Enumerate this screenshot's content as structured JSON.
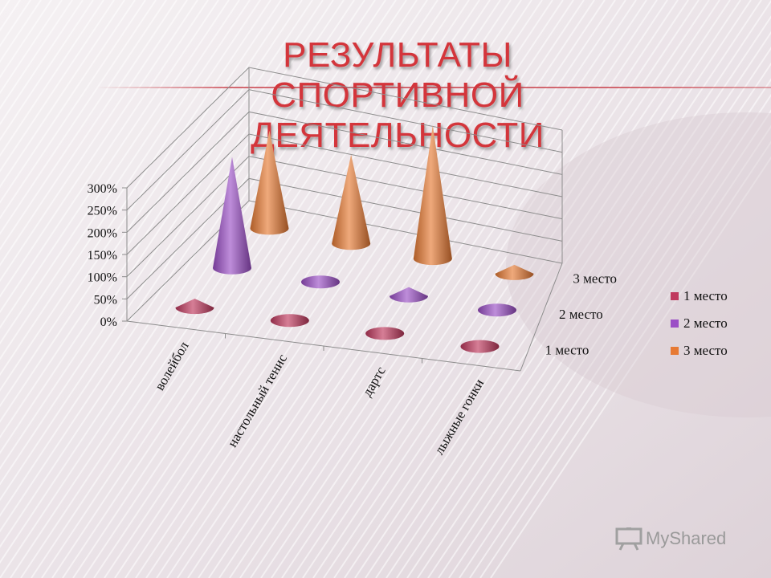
{
  "title": "РЕЗУЛЬТАТЫ СПОРТИВНОЙ ДЕЯТЕЛЬНОСТИ",
  "chart_data": {
    "type": "bar",
    "style": "3d-cone",
    "categories": [
      "волейбол",
      "настольный тенис",
      "дартс",
      "лыжные гонки"
    ],
    "depth_labels": [
      "1 место",
      "2 место",
      "3 место"
    ],
    "series": [
      {
        "name": "1 место",
        "color": "#c0395e",
        "values": [
          0.2,
          0,
          0,
          0
        ]
      },
      {
        "name": "2 место",
        "color": "#9b4fc6",
        "values": [
          2.5,
          0,
          0.2,
          0
        ]
      },
      {
        "name": "3 место",
        "color": "#e77a34",
        "values": [
          2.2,
          2.0,
          3.0,
          0.2
        ]
      }
    ],
    "y_ticks": [
      "0%",
      "50%",
      "100%",
      "150%",
      "200%",
      "250%",
      "300%"
    ],
    "ylim": [
      0,
      3
    ],
    "legend_position": "right",
    "grid": true
  },
  "watermark": {
    "text": "MyShared",
    "icon": "presentation-board-icon"
  }
}
